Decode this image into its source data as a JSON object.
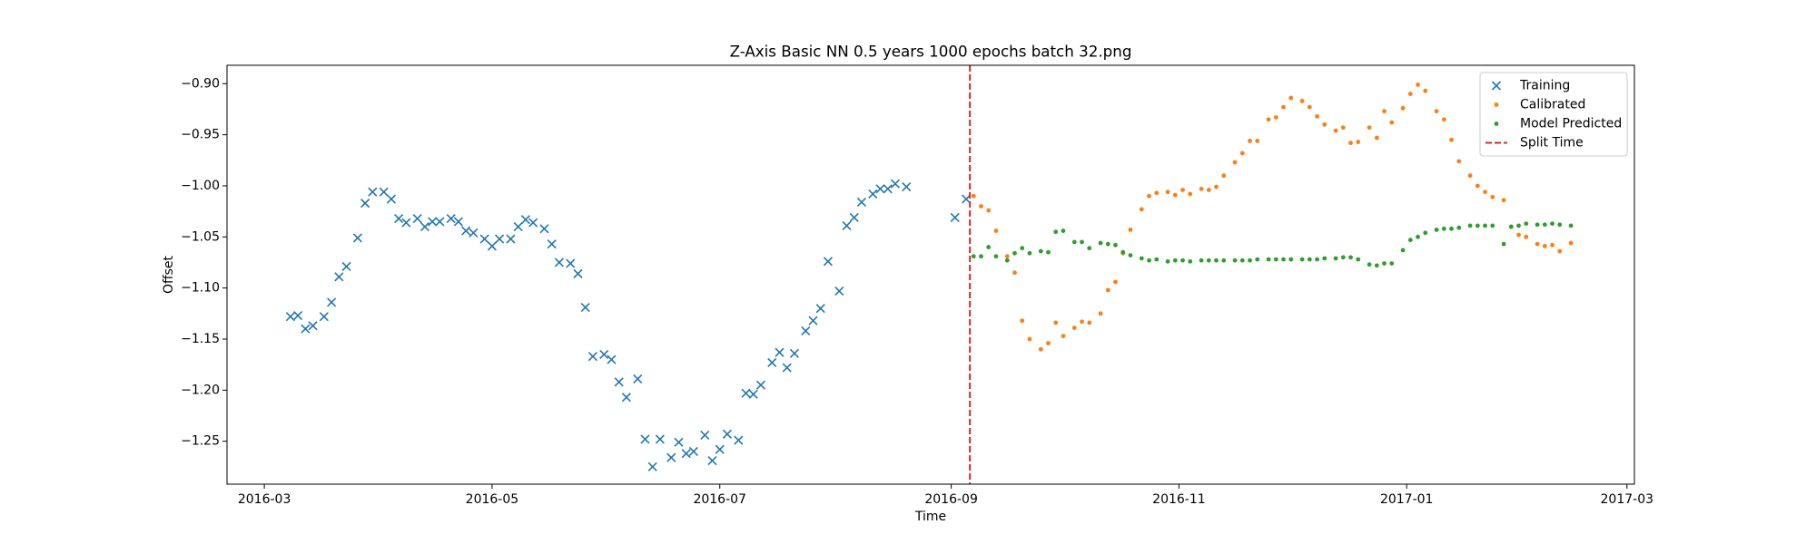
{
  "chart_data": {
    "type": "scatter",
    "title": "Z-Axis Basic NN 0.5 years 1000 epochs batch 32.png",
    "x_label": "Time",
    "y_label": "Offset",
    "xlim": [
      "2016-02-20",
      "2017-03-03"
    ],
    "ylim": [
      -1.292,
      -0.882
    ],
    "xticks": [
      {
        "value": "2016-03-01",
        "label": "2016-03"
      },
      {
        "value": "2016-05-01",
        "label": "2016-05"
      },
      {
        "value": "2016-07-01",
        "label": "2016-07"
      },
      {
        "value": "2016-09-01",
        "label": "2016-09"
      },
      {
        "value": "2016-11-01",
        "label": "2016-11"
      },
      {
        "value": "2017-01-01",
        "label": "2017-01"
      },
      {
        "value": "2017-03-01",
        "label": "2017-03"
      }
    ],
    "yticks": [
      {
        "value": -0.9,
        "label": "−0.90"
      },
      {
        "value": -0.95,
        "label": "−0.95"
      },
      {
        "value": -1.0,
        "label": "−1.00"
      },
      {
        "value": -1.05,
        "label": "−1.05"
      },
      {
        "value": -1.1,
        "label": "−1.10"
      },
      {
        "value": -1.15,
        "label": "−1.15"
      },
      {
        "value": -1.2,
        "label": "−1.20"
      },
      {
        "value": -1.25,
        "label": "−1.25"
      }
    ],
    "grid": false,
    "legend": "upper right",
    "series": [
      {
        "name": "Training",
        "color": "#1f77b4",
        "marker": "x",
        "x": [
          "2016-03-08",
          "2016-03-10",
          "2016-03-12",
          "2016-03-14",
          "2016-03-17",
          "2016-03-19",
          "2016-03-21",
          "2016-03-23",
          "2016-03-26",
          "2016-03-28",
          "2016-03-30",
          "2016-04-02",
          "2016-04-04",
          "2016-04-06",
          "2016-04-08",
          "2016-04-11",
          "2016-04-13",
          "2016-04-15",
          "2016-04-17",
          "2016-04-20",
          "2016-04-22",
          "2016-04-24",
          "2016-04-26",
          "2016-04-29",
          "2016-05-01",
          "2016-05-03",
          "2016-05-06",
          "2016-05-08",
          "2016-05-10",
          "2016-05-12",
          "2016-05-15",
          "2016-05-17",
          "2016-05-19",
          "2016-05-22",
          "2016-05-24",
          "2016-05-26",
          "2016-05-28",
          "2016-05-31",
          "2016-06-02",
          "2016-06-04",
          "2016-06-06",
          "2016-06-09",
          "2016-06-11",
          "2016-06-13",
          "2016-06-15",
          "2016-06-18",
          "2016-06-20",
          "2016-06-22",
          "2016-06-24",
          "2016-06-27",
          "2016-06-29",
          "2016-07-01",
          "2016-07-03",
          "2016-07-06",
          "2016-07-08",
          "2016-07-10",
          "2016-07-12",
          "2016-07-15",
          "2016-07-17",
          "2016-07-19",
          "2016-07-21",
          "2016-07-24",
          "2016-07-26",
          "2016-07-28",
          "2016-07-30",
          "2016-08-02",
          "2016-08-04",
          "2016-08-06",
          "2016-08-08",
          "2016-08-11",
          "2016-08-13",
          "2016-08-15",
          "2016-08-17",
          "2016-08-20",
          "2016-09-02",
          "2016-09-05"
        ],
        "values": [
          -1.128,
          -1.127,
          -1.14,
          -1.137,
          -1.128,
          -1.114,
          -1.089,
          -1.079,
          -1.051,
          -1.017,
          -1.006,
          -1.006,
          -1.013,
          -1.032,
          -1.036,
          -1.032,
          -1.04,
          -1.035,
          -1.035,
          -1.032,
          -1.035,
          -1.044,
          -1.046,
          -1.052,
          -1.059,
          -1.052,
          -1.052,
          -1.04,
          -1.033,
          -1.036,
          -1.042,
          -1.057,
          -1.075,
          -1.076,
          -1.086,
          -1.119,
          -1.167,
          -1.165,
          -1.17,
          -1.192,
          -1.207,
          -1.189,
          -1.248,
          -1.275,
          -1.248,
          -1.266,
          -1.251,
          -1.262,
          -1.26,
          -1.244,
          -1.269,
          -1.258,
          -1.243,
          -1.249,
          -1.203,
          -1.204,
          -1.195,
          -1.173,
          -1.163,
          -1.178,
          -1.164,
          -1.142,
          -1.132,
          -1.12,
          -1.074,
          -1.103,
          -1.039,
          -1.031,
          -1.016,
          -1.008,
          -1.003,
          -1.003,
          -0.998,
          -1.001,
          -1.031,
          -1.013
        ]
      },
      {
        "name": "Calibrated",
        "color": "#ff7f0e",
        "marker": "dot",
        "x": [
          "2016-09-07",
          "2016-09-09",
          "2016-09-11",
          "2016-09-13",
          "2016-09-16",
          "2016-09-18",
          "2016-09-20",
          "2016-09-22",
          "2016-09-25",
          "2016-09-27",
          "2016-09-29",
          "2016-10-01",
          "2016-10-04",
          "2016-10-06",
          "2016-10-08",
          "2016-10-11",
          "2016-10-13",
          "2016-10-15",
          "2016-10-17",
          "2016-10-19",
          "2016-10-22",
          "2016-10-24",
          "2016-10-26",
          "2016-10-29",
          "2016-10-31",
          "2016-11-02",
          "2016-11-04",
          "2016-11-07",
          "2016-11-09",
          "2016-11-11",
          "2016-11-13",
          "2016-11-16",
          "2016-11-18",
          "2016-11-20",
          "2016-11-22",
          "2016-11-25",
          "2016-11-27",
          "2016-11-29",
          "2016-12-01",
          "2016-12-04",
          "2016-12-06",
          "2016-12-08",
          "2016-12-10",
          "2016-12-13",
          "2016-12-15",
          "2016-12-17",
          "2016-12-19",
          "2016-12-22",
          "2016-12-24",
          "2016-12-26",
          "2016-12-28",
          "2016-12-31",
          "2017-01-02",
          "2017-01-04",
          "2017-01-06",
          "2017-01-09",
          "2017-01-11",
          "2017-01-13",
          "2017-01-15",
          "2017-01-18",
          "2017-01-20",
          "2017-01-22",
          "2017-01-24",
          "2017-01-27",
          "2017-01-29",
          "2017-01-31",
          "2017-02-02",
          "2017-02-05",
          "2017-02-07",
          "2017-02-09",
          "2017-02-11",
          "2017-02-14"
        ],
        "values": [
          -1.01,
          -1.02,
          -1.024,
          -1.044,
          -1.069,
          -1.085,
          -1.132,
          -1.15,
          -1.16,
          -1.154,
          -1.134,
          -1.147,
          -1.139,
          -1.133,
          -1.134,
          -1.125,
          -1.102,
          -1.094,
          -1.066,
          -1.043,
          -1.023,
          -1.01,
          -1.007,
          -1.006,
          -1.009,
          -1.004,
          -1.008,
          -1.003,
          -1.004,
          -1.001,
          -0.99,
          -0.977,
          -0.968,
          -0.956,
          -0.956,
          -0.935,
          -0.933,
          -0.923,
          -0.914,
          -0.917,
          -0.923,
          -0.932,
          -0.94,
          -0.946,
          -0.943,
          -0.958,
          -0.957,
          -0.943,
          -0.953,
          -0.927,
          -0.938,
          -0.924,
          -0.91,
          -0.901,
          -0.907,
          -0.927,
          -0.935,
          -0.955,
          -0.976,
          -0.99,
          -1.0,
          -1.006,
          -1.011,
          -1.014,
          -1.04,
          -1.048,
          -1.05,
          -1.057,
          -1.059,
          -1.058,
          -1.064,
          -1.056
        ]
      },
      {
        "name": "Model Predicted",
        "color": "#2ca02c",
        "marker": "dot",
        "x": [
          "2016-09-07",
          "2016-09-09",
          "2016-09-11",
          "2016-09-13",
          "2016-09-16",
          "2016-09-18",
          "2016-09-20",
          "2016-09-22",
          "2016-09-25",
          "2016-09-27",
          "2016-09-29",
          "2016-10-01",
          "2016-10-04",
          "2016-10-06",
          "2016-10-08",
          "2016-10-11",
          "2016-10-13",
          "2016-10-15",
          "2016-10-17",
          "2016-10-19",
          "2016-10-22",
          "2016-10-24",
          "2016-10-26",
          "2016-10-29",
          "2016-10-31",
          "2016-11-02",
          "2016-11-04",
          "2016-11-07",
          "2016-11-09",
          "2016-11-11",
          "2016-11-13",
          "2016-11-16",
          "2016-11-18",
          "2016-11-20",
          "2016-11-22",
          "2016-11-25",
          "2016-11-27",
          "2016-11-29",
          "2016-12-01",
          "2016-12-04",
          "2016-12-06",
          "2016-12-08",
          "2016-12-10",
          "2016-12-13",
          "2016-12-15",
          "2016-12-17",
          "2016-12-19",
          "2016-12-22",
          "2016-12-24",
          "2016-12-26",
          "2016-12-28",
          "2016-12-31",
          "2017-01-02",
          "2017-01-04",
          "2017-01-06",
          "2017-01-09",
          "2017-01-11",
          "2017-01-13",
          "2017-01-15",
          "2017-01-18",
          "2017-01-20",
          "2017-01-22",
          "2017-01-24",
          "2017-01-27",
          "2017-01-29",
          "2017-01-31",
          "2017-02-02",
          "2017-02-05",
          "2017-02-07",
          "2017-02-09",
          "2017-02-11",
          "2017-02-14"
        ],
        "values": [
          -1.069,
          -1.069,
          -1.06,
          -1.069,
          -1.073,
          -1.066,
          -1.061,
          -1.066,
          -1.064,
          -1.065,
          -1.045,
          -1.044,
          -1.055,
          -1.055,
          -1.061,
          -1.056,
          -1.057,
          -1.058,
          -1.065,
          -1.068,
          -1.071,
          -1.073,
          -1.072,
          -1.074,
          -1.073,
          -1.073,
          -1.074,
          -1.073,
          -1.073,
          -1.073,
          -1.073,
          -1.073,
          -1.073,
          -1.073,
          -1.072,
          -1.072,
          -1.072,
          -1.072,
          -1.072,
          -1.072,
          -1.072,
          -1.072,
          -1.071,
          -1.071,
          -1.07,
          -1.07,
          -1.072,
          -1.077,
          -1.078,
          -1.076,
          -1.076,
          -1.063,
          -1.053,
          -1.05,
          -1.046,
          -1.043,
          -1.042,
          -1.042,
          -1.041,
          -1.039,
          -1.039,
          -1.039,
          -1.039,
          -1.057,
          -1.04,
          -1.039,
          -1.037,
          -1.038,
          -1.038,
          -1.037,
          -1.038,
          -1.039
        ]
      }
    ],
    "vlines": [
      {
        "name": "Split Time",
        "x": "2016-09-06",
        "color": "#d62728",
        "linestyle": "dashed"
      }
    ]
  }
}
